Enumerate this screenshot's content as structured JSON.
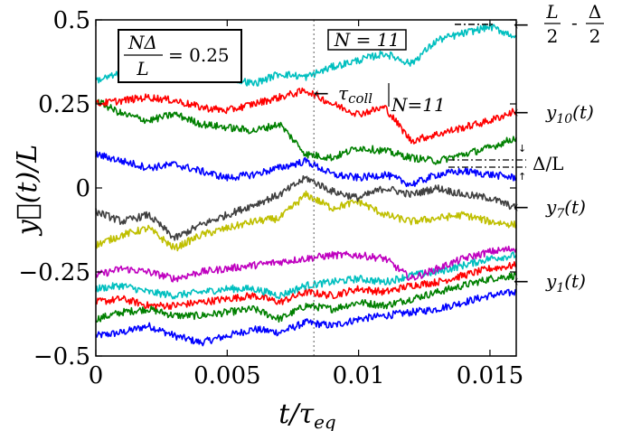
{
  "chart_data": {
    "type": "line",
    "xlabel": "t/τ_eq",
    "ylabel": "y⃗(t)/L",
    "xlim": [
      0,
      0.016
    ],
    "ylim": [
      -0.5,
      0.5
    ],
    "xticks": [
      {
        "value": 0,
        "label": "0"
      },
      {
        "value": 0.005,
        "label": "0.005"
      },
      {
        "value": 0.01,
        "label": "0.01"
      },
      {
        "value": 0.015,
        "label": "0.015"
      }
    ],
    "yticks": [
      {
        "value": -0.5,
        "label": "−0.5"
      },
      {
        "value": -0.25,
        "label": "−0.25"
      },
      {
        "value": 0,
        "label": "0"
      },
      {
        "value": 0.25,
        "label": "0.25"
      },
      {
        "value": 0.5,
        "label": "0.5"
      }
    ],
    "grid": false,
    "vline": {
      "x": 0.0083,
      "style": "dotted"
    },
    "series": [
      {
        "color": "#0000ff",
        "x": [
          0,
          0.001,
          0.002,
          0.003,
          0.004,
          0.005,
          0.006,
          0.007,
          0.008,
          0.009,
          0.01,
          0.011,
          0.012,
          0.013,
          0.014,
          0.015,
          0.016
        ],
        "y": [
          -0.44,
          -0.43,
          -0.41,
          -0.44,
          -0.46,
          -0.44,
          -0.42,
          -0.43,
          -0.4,
          -0.41,
          -0.39,
          -0.38,
          -0.37,
          -0.36,
          -0.34,
          -0.32,
          -0.31
        ]
      },
      {
        "color": "#008000",
        "x": [
          0,
          0.001,
          0.002,
          0.003,
          0.004,
          0.005,
          0.006,
          0.007,
          0.008,
          0.009,
          0.01,
          0.011,
          0.012,
          0.013,
          0.014,
          0.015,
          0.016
        ],
        "y": [
          -0.39,
          -0.37,
          -0.36,
          -0.38,
          -0.38,
          -0.37,
          -0.36,
          -0.39,
          -0.35,
          -0.36,
          -0.34,
          -0.35,
          -0.33,
          -0.31,
          -0.29,
          -0.27,
          -0.26
        ]
      },
      {
        "color": "#ff0000",
        "x": [
          0,
          0.001,
          0.002,
          0.003,
          0.004,
          0.005,
          0.006,
          0.007,
          0.008,
          0.009,
          0.01,
          0.011,
          0.012,
          0.013,
          0.014,
          0.015,
          0.016
        ],
        "y": [
          -0.34,
          -0.33,
          -0.35,
          -0.35,
          -0.34,
          -0.33,
          -0.32,
          -0.34,
          -0.31,
          -0.32,
          -0.3,
          -0.31,
          -0.29,
          -0.28,
          -0.26,
          -0.24,
          -0.23
        ]
      },
      {
        "color": "#00bfbf",
        "x": [
          0,
          0.001,
          0.002,
          0.003,
          0.004,
          0.005,
          0.006,
          0.007,
          0.008,
          0.009,
          0.01,
          0.011,
          0.012,
          0.013,
          0.014,
          0.015,
          0.016
        ],
        "y": [
          -0.3,
          -0.29,
          -0.31,
          -0.32,
          -0.31,
          -0.3,
          -0.3,
          -0.32,
          -0.29,
          -0.28,
          -0.27,
          -0.28,
          -0.26,
          -0.25,
          -0.23,
          -0.21,
          -0.2
        ]
      },
      {
        "color": "#bf00bf",
        "x": [
          0,
          0.001,
          0.002,
          0.003,
          0.004,
          0.005,
          0.006,
          0.007,
          0.008,
          0.009,
          0.01,
          0.011,
          0.012,
          0.013,
          0.014,
          0.015,
          0.016
        ],
        "y": [
          -0.26,
          -0.24,
          -0.25,
          -0.27,
          -0.25,
          -0.24,
          -0.23,
          -0.22,
          -0.21,
          -0.2,
          -0.2,
          -0.21,
          -0.27,
          -0.24,
          -0.21,
          -0.19,
          -0.18
        ]
      },
      {
        "color": "#bfbf00",
        "x": [
          0,
          0.001,
          0.002,
          0.003,
          0.004,
          0.005,
          0.006,
          0.007,
          0.008,
          0.009,
          0.01,
          0.011,
          0.012,
          0.013,
          0.014,
          0.015,
          0.016
        ],
        "y": [
          -0.17,
          -0.14,
          -0.12,
          -0.18,
          -0.14,
          -0.12,
          -0.1,
          -0.09,
          -0.02,
          -0.06,
          -0.04,
          -0.08,
          -0.1,
          -0.09,
          -0.08,
          -0.1,
          -0.11
        ]
      },
      {
        "color": "#404040",
        "x": [
          0,
          0.001,
          0.002,
          0.003,
          0.004,
          0.005,
          0.006,
          0.007,
          0.008,
          0.009,
          0.01,
          0.011,
          0.012,
          0.013,
          0.014,
          0.015,
          0.016
        ],
        "y": [
          -0.07,
          -0.1,
          -0.08,
          -0.15,
          -0.11,
          -0.08,
          -0.05,
          -0.02,
          0.03,
          -0.01,
          -0.03,
          0.0,
          -0.02,
          0.0,
          -0.02,
          -0.03,
          -0.06
        ]
      },
      {
        "color": "#0000ff",
        "x": [
          0,
          0.001,
          0.002,
          0.003,
          0.004,
          0.005,
          0.006,
          0.007,
          0.008,
          0.009,
          0.01,
          0.011,
          0.012,
          0.013,
          0.014,
          0.015,
          0.016
        ],
        "y": [
          0.1,
          0.08,
          0.06,
          0.07,
          0.05,
          0.03,
          0.04,
          0.06,
          0.08,
          0.04,
          0.03,
          0.04,
          0.01,
          0.04,
          0.05,
          0.04,
          0.03
        ]
      },
      {
        "color": "#008000",
        "x": [
          0,
          0.001,
          0.002,
          0.003,
          0.004,
          0.005,
          0.006,
          0.007,
          0.008,
          0.009,
          0.01,
          0.011,
          0.012,
          0.013,
          0.014,
          0.015,
          0.016
        ],
        "y": [
          0.26,
          0.22,
          0.2,
          0.22,
          0.19,
          0.18,
          0.17,
          0.19,
          0.1,
          0.09,
          0.12,
          0.11,
          0.09,
          0.08,
          0.1,
          0.12,
          0.15
        ]
      },
      {
        "color": "#ff0000",
        "x": [
          0,
          0.001,
          0.002,
          0.003,
          0.004,
          0.005,
          0.006,
          0.007,
          0.008,
          0.009,
          0.01,
          0.011,
          0.012,
          0.013,
          0.014,
          0.015,
          0.016
        ],
        "y": [
          0.25,
          0.26,
          0.27,
          0.26,
          0.24,
          0.23,
          0.25,
          0.27,
          0.29,
          0.25,
          0.22,
          0.24,
          0.14,
          0.16,
          0.18,
          0.2,
          0.23
        ]
      },
      {
        "color": "#00bfbf",
        "x": [
          0,
          0.001,
          0.002,
          0.003,
          0.004,
          0.005,
          0.006,
          0.007,
          0.008,
          0.009,
          0.01,
          0.011,
          0.012,
          0.013,
          0.014,
          0.015,
          0.016
        ],
        "y": [
          0.32,
          0.34,
          0.35,
          0.33,
          0.34,
          0.33,
          0.31,
          0.34,
          0.33,
          0.36,
          0.38,
          0.4,
          0.37,
          0.44,
          0.46,
          0.48,
          0.45
        ]
      }
    ]
  },
  "annotations": {
    "box_fraction_num": "NΔ",
    "box_fraction_den": "L",
    "box_value": "= 0.25",
    "n_label": "N = 11",
    "tau_coll_main": "τ",
    "tau_coll_sub": "coll",
    "tau_coll_cond": "N=11",
    "top_frac1_num": "L",
    "top_frac1_den": "2",
    "top_dash": "-",
    "top_frac2_num": "Δ",
    "top_frac2_den": "2",
    "y10_label": "y",
    "y10_sub": "10",
    "y10_arg": "(t)",
    "delta_label": "Δ/L",
    "y7_label": "y",
    "y7_sub": "7",
    "y7_arg": "(t)",
    "y1_label": "y",
    "y1_sub": "1",
    "y1_arg": "(t)"
  }
}
